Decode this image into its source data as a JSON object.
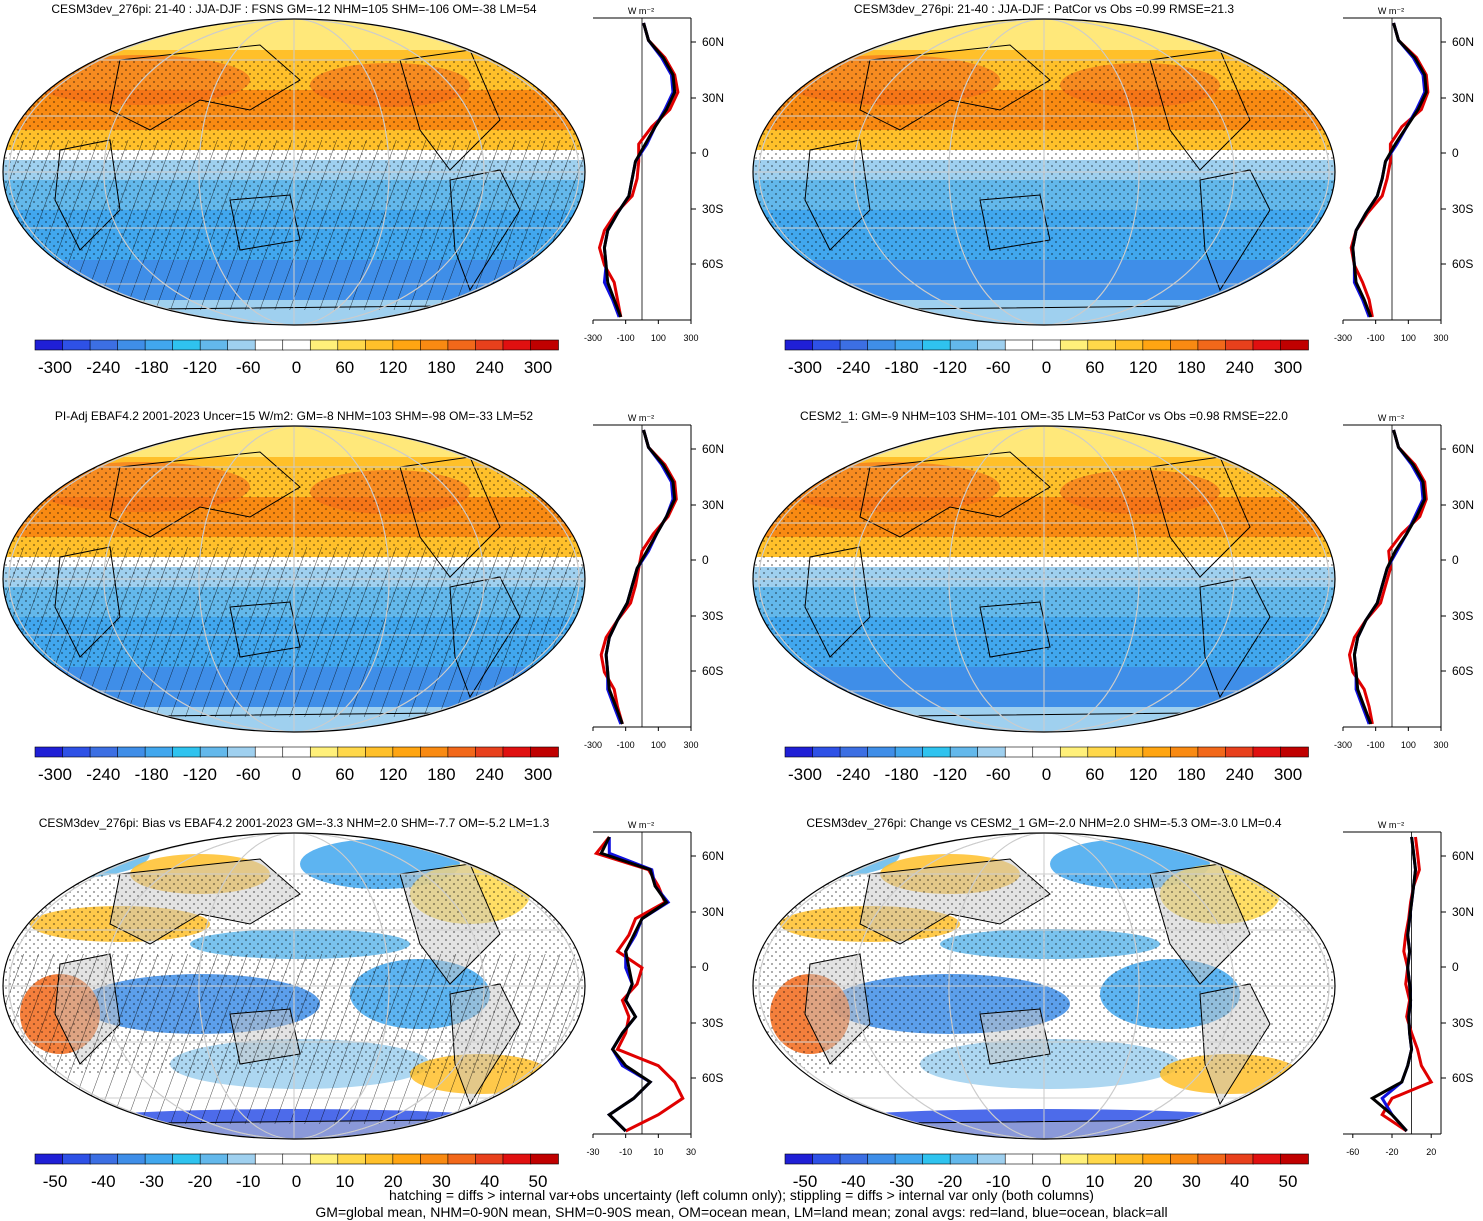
{
  "colors": {
    "scale": [
      "#1f1fd6",
      "#2e51e6",
      "#3c6fe3",
      "#3f8ee8",
      "#41a7ee",
      "#2fc3ef",
      "#63b8eb",
      "#9fd0ef",
      "#ffffff",
      "#ffffff",
      "#fff07a",
      "#ffd84a",
      "#ffc02a",
      "#ffa512",
      "#f98a12",
      "#f2681a",
      "#e8401c",
      "#e01010",
      "#c00000"
    ],
    "land": "#c8c8c8",
    "zonal_land": "#e00000",
    "zonal_ocean": "#1010e0",
    "zonal_all": "#000000",
    "grid": "#cccccc"
  },
  "panels": [
    {
      "title": "CESM3dev_276pi: 21-40 : JJA-DJF : FSNS GM=-12 NHM=105 SHM=-106 OM=-38 LM=54",
      "colorbar_ticks": [
        "-300",
        "-240",
        "-180",
        "-120",
        "-60",
        "0",
        "60",
        "120",
        "180",
        "240",
        "300"
      ],
      "zonal_xticks": [
        "-300",
        "-100",
        "100",
        "300"
      ],
      "zonal_unit": "W m⁻²",
      "lat_ticks": [
        "60N",
        "30N",
        "0",
        "30S",
        "60S"
      ],
      "hatching": true,
      "zonal": {
        "all": [
          10,
          40,
          130,
          190,
          200,
          150,
          80,
          20,
          -40,
          -60,
          -80,
          -150,
          -210,
          -230,
          -220,
          -210,
          -170,
          -130
        ],
        "land": [
          10,
          40,
          140,
          200,
          220,
          170,
          60,
          -20,
          -20,
          -30,
          -60,
          -160,
          -230,
          -260,
          -230,
          -170,
          -150,
          -130
        ],
        "ocean": [
          10,
          40,
          120,
          180,
          190,
          140,
          80,
          30,
          -40,
          -60,
          -80,
          -150,
          -210,
          -230,
          -220,
          -230,
          -180,
          -140
        ]
      }
    },
    {
      "title": "CESM3dev_276pi: 21-40 : JJA-DJF : PatCor vs Obs =0.99 RMSE=21.3",
      "colorbar_ticks": [
        "-300",
        "-240",
        "-180",
        "-120",
        "-60",
        "0",
        "60",
        "120",
        "180",
        "240",
        "300"
      ],
      "zonal_xticks": [
        "-300",
        "-100",
        "100",
        "300"
      ],
      "zonal_unit": "W m⁻²",
      "lat_ticks": [
        "60N",
        "30N",
        "0",
        "30S",
        "60S"
      ],
      "hatching": false,
      "zonal": {
        "all": [
          10,
          40,
          140,
          200,
          210,
          160,
          90,
          20,
          -40,
          -60,
          -90,
          -160,
          -220,
          -240,
          -230,
          -220,
          -170,
          -130
        ],
        "land": [
          10,
          40,
          150,
          210,
          220,
          180,
          60,
          -10,
          -10,
          -30,
          -60,
          -150,
          -220,
          -250,
          -230,
          -180,
          -140,
          -120
        ],
        "ocean": [
          10,
          40,
          130,
          190,
          200,
          150,
          90,
          30,
          -40,
          -60,
          -90,
          -160,
          -220,
          -240,
          -230,
          -230,
          -180,
          -140
        ]
      }
    },
    {
      "title": "PI-Adj EBAF4.2 2001-2023 Uncer=15 W/m2: GM=-8 NHM=103 SHM=-98 OM=-33 LM=52",
      "colorbar_ticks": [
        "-300",
        "-240",
        "-180",
        "-120",
        "-60",
        "0",
        "60",
        "120",
        "180",
        "240",
        "300"
      ],
      "zonal_xticks": [
        "-300",
        "-100",
        "100",
        "300"
      ],
      "zonal_unit": "W m⁻²",
      "lat_ticks": [
        "60N",
        "30N",
        "0",
        "30S",
        "60S"
      ],
      "hatching": true,
      "zonal": {
        "all": [
          10,
          40,
          130,
          190,
          200,
          150,
          90,
          30,
          -30,
          -60,
          -90,
          -150,
          -200,
          -220,
          -210,
          -200,
          -160,
          -120
        ],
        "land": [
          10,
          40,
          140,
          200,
          210,
          160,
          70,
          0,
          -20,
          -40,
          -70,
          -150,
          -220,
          -250,
          -230,
          -170,
          -150,
          -120
        ],
        "ocean": [
          10,
          40,
          120,
          180,
          190,
          150,
          90,
          40,
          -30,
          -60,
          -90,
          -150,
          -200,
          -220,
          -210,
          -210,
          -170,
          -130
        ]
      }
    },
    {
      "title": "CESM2_1: GM=-9 NHM=103 SHM=-101 OM=-35 LM=53 PatCor vs Obs =0.98 RMSE=22.0",
      "colorbar_ticks": [
        "-300",
        "-240",
        "-180",
        "-120",
        "-60",
        "0",
        "60",
        "120",
        "180",
        "240",
        "300"
      ],
      "zonal_xticks": [
        "-300",
        "-100",
        "100",
        "300"
      ],
      "zonal_unit": "W m⁻²",
      "lat_ticks": [
        "60N",
        "30N",
        "0",
        "30S",
        "60S"
      ],
      "hatching": false,
      "zonal": {
        "all": [
          10,
          40,
          130,
          190,
          200,
          150,
          90,
          20,
          -30,
          -60,
          -90,
          -160,
          -210,
          -230,
          -220,
          -210,
          -170,
          -130
        ],
        "land": [
          10,
          40,
          140,
          200,
          210,
          170,
          60,
          -20,
          -10,
          -40,
          -70,
          -160,
          -230,
          -260,
          -240,
          -170,
          -140,
          -120
        ],
        "ocean": [
          10,
          40,
          120,
          180,
          190,
          140,
          90,
          30,
          -30,
          -60,
          -90,
          -160,
          -210,
          -230,
          -220,
          -220,
          -180,
          -140
        ]
      }
    },
    {
      "title": "CESM3dev_276pi: Bias vs EBAF4.2 2001-2023 GM=-3.3 NHM=2.0 SHM=-7.7 OM=-5.2 LM=1.3",
      "colorbar_ticks": [
        "-50",
        "-40",
        "-30",
        "-20",
        "-10",
        "0",
        "10",
        "20",
        "30",
        "40",
        "50"
      ],
      "zonal_xticks": [
        "-30",
        "-10",
        "10",
        "30"
      ],
      "zonal_unit": "W m⁻²",
      "lat_ticks": [
        "60N",
        "30N",
        "0",
        "30S",
        "60S"
      ],
      "hatching": true,
      "zonal": {
        "all": [
          -20,
          -25,
          5,
          8,
          15,
          0,
          -5,
          -10,
          -8,
          -6,
          -10,
          -4,
          -12,
          -18,
          -10,
          5,
          -5,
          -20,
          -10
        ],
        "land": [
          -20,
          -28,
          4,
          10,
          14,
          -4,
          -8,
          -15,
          0,
          -3,
          -12,
          -8,
          -10,
          -15,
          10,
          20,
          25,
          10,
          -10
        ],
        "ocean": [
          -20,
          -20,
          6,
          8,
          16,
          0,
          -4,
          -10,
          -10,
          -6,
          -10,
          -4,
          -12,
          -18,
          -12,
          5,
          -5,
          -20,
          -10
        ]
      }
    },
    {
      "title": "CESM3dev_276pi: Change vs CESM2_1 GM=-2.0 NHM=2.0 SHM=-5.3 OM=-3.0 LM=0.4",
      "colorbar_ticks": [
        "-50",
        "-40",
        "-30",
        "-20",
        "-10",
        "0",
        "10",
        "20",
        "30",
        "40",
        "50"
      ],
      "zonal_xticks": [
        "-60",
        "-20",
        "20"
      ],
      "zonal_unit": "W m⁻²",
      "lat_ticks": [
        "60N",
        "30N",
        "0",
        "30S",
        "60S"
      ],
      "hatching": false,
      "zonal": {
        "all": [
          0,
          2,
          4,
          2,
          0,
          -2,
          -4,
          -2,
          -4,
          -2,
          -1,
          -3,
          -2,
          0,
          -4,
          -10,
          -40,
          -20,
          -5
        ],
        "land": [
          4,
          6,
          8,
          2,
          -1,
          -3,
          -6,
          -8,
          -4,
          -6,
          -2,
          -5,
          0,
          6,
          10,
          20,
          -20,
          -30,
          -5
        ],
        "ocean": [
          0,
          2,
          4,
          2,
          0,
          -2,
          -4,
          -2,
          -4,
          -2,
          -1,
          -3,
          -2,
          0,
          -4,
          -10,
          -30,
          -20,
          -5
        ]
      }
    }
  ],
  "footer": {
    "line1": "hatching = diffs > internal var+obs uncertainty (left column only); stippling = diffs > internal var only (both columns)",
    "line2": "GM=global mean, NHM=0-90N mean, SHM=0-90S mean, OM=ocean mean, LM=land mean; zonal avgs: red=land, blue=ocean, black=all"
  }
}
